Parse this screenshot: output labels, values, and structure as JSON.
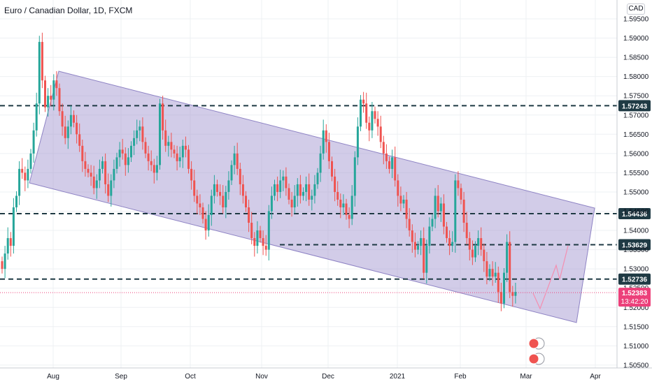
{
  "header": {
    "title": "Euro / Canadian Dollar, 1D, FXCM",
    "currency": "CAD"
  },
  "colors": {
    "up": "#26a69a",
    "down": "#ef5350",
    "channel_fill": "#9c8fcc",
    "dashed": "#1f3a44",
    "last_price": "#ec407a"
  },
  "chart_data": {
    "type": "candlestick",
    "x_tick_labels": [
      "Aug",
      "Sep",
      "Oct",
      "Nov",
      "Dec",
      "2021",
      "Feb",
      "Mar",
      "Apr"
    ],
    "y_tick_labels": [
      "1.59500",
      "1.59000",
      "1.58500",
      "1.58000",
      "1.57500",
      "1.57000",
      "1.56500",
      "1.56000",
      "1.55500",
      "1.55000",
      "1.54500",
      "1.54000",
      "1.53500",
      "1.53000",
      "1.52500",
      "1.52000",
      "1.51500",
      "1.51000",
      "1.50500"
    ],
    "ylim": [
      1.5045,
      1.599
    ],
    "horizontal_levels": [
      {
        "label": "1.57243",
        "value": 1.57243
      },
      {
        "label": "1.54436",
        "value": 1.54436
      },
      {
        "label": "1.53629",
        "value": 1.53629
      },
      {
        "label": "1.52736",
        "value": 1.52736
      }
    ],
    "last_price": {
      "label": "1.52383",
      "value": 1.52383,
      "countdown": "13:42:20"
    },
    "close_series": [
      1.53,
      1.534,
      1.538,
      1.536,
      1.546,
      1.549,
      1.556,
      1.555,
      1.553,
      1.556,
      1.56,
      1.566,
      1.573,
      1.589,
      1.579,
      1.572,
      1.575,
      1.574,
      1.579,
      1.577,
      1.571,
      1.567,
      1.564,
      1.567,
      1.57,
      1.568,
      1.565,
      1.562,
      1.558,
      1.556,
      1.555,
      1.554,
      1.551,
      1.553,
      1.556,
      1.558,
      1.552,
      1.549,
      1.553,
      1.556,
      1.559,
      1.561,
      1.56,
      1.557,
      1.559,
      1.562,
      1.564,
      1.566,
      1.567,
      1.563,
      1.56,
      1.558,
      1.557,
      1.555,
      1.557,
      1.573,
      1.566,
      1.562,
      1.563,
      1.561,
      1.56,
      1.558,
      1.559,
      1.562,
      1.561,
      1.556,
      1.553,
      1.549,
      1.547,
      1.546,
      1.543,
      1.54,
      1.544,
      1.549,
      1.552,
      1.55,
      1.549,
      1.546,
      1.55,
      1.553,
      1.557,
      1.56,
      1.556,
      1.552,
      1.549,
      1.546,
      1.542,
      1.538,
      1.536,
      1.54,
      1.538,
      1.536,
      1.535,
      1.545,
      1.549,
      1.552,
      1.55,
      1.553,
      1.554,
      1.551,
      1.548,
      1.546,
      1.549,
      1.552,
      1.549,
      1.55,
      1.552,
      1.548,
      1.549,
      1.552,
      1.555,
      1.56,
      1.566,
      1.563,
      1.558,
      1.554,
      1.55,
      1.548,
      1.546,
      1.547,
      1.544,
      1.543,
      1.549,
      1.559,
      1.567,
      1.574,
      1.573,
      1.568,
      1.566,
      1.571,
      1.569,
      1.567,
      1.563,
      1.56,
      1.558,
      1.556,
      1.559,
      1.553,
      1.549,
      1.547,
      1.548,
      1.543,
      1.54,
      1.537,
      1.535,
      1.536,
      1.538,
      1.529,
      1.536,
      1.541,
      1.543,
      1.549,
      1.545,
      1.547,
      1.541,
      1.538,
      1.536,
      1.537,
      1.553,
      1.551,
      1.548,
      1.542,
      1.538,
      1.535,
      1.533,
      1.536,
      1.538,
      1.535,
      1.532,
      1.528,
      1.53,
      1.528,
      1.529,
      1.524,
      1.521,
      1.529,
      1.537,
      1.524,
      1.523,
      1.524
    ]
  }
}
